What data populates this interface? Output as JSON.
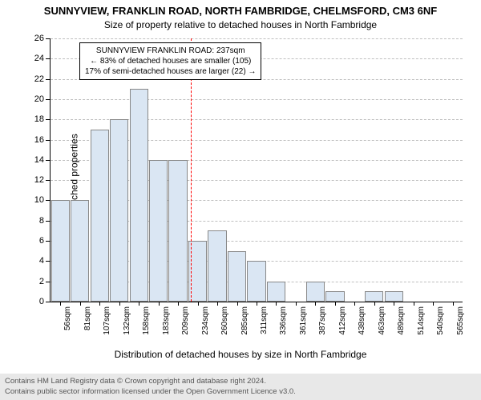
{
  "title": {
    "line1": "SUNNYVIEW, FRANKLIN ROAD, NORTH FAMBRIDGE, CHELMSFORD, CM3 6NF",
    "line2": "Size of property relative to detached houses in North Fambridge"
  },
  "ylabel": "Number of detached properties",
  "xlabel": "Distribution of detached houses by size in North Fambridge",
  "chart": {
    "type": "histogram",
    "ylim": [
      0,
      26
    ],
    "ytick_step": 2,
    "xtick_labels": [
      "56sqm",
      "81sqm",
      "107sqm",
      "132sqm",
      "158sqm",
      "183sqm",
      "209sqm",
      "234sqm",
      "260sqm",
      "285sqm",
      "311sqm",
      "336sqm",
      "361sqm",
      "387sqm",
      "412sqm",
      "438sqm",
      "463sqm",
      "489sqm",
      "514sqm",
      "540sqm",
      "565sqm"
    ],
    "bars": [
      10,
      10,
      17,
      18,
      21,
      14,
      14,
      6,
      7,
      5,
      4,
      2,
      0,
      2,
      1,
      0,
      1,
      1,
      0,
      0,
      0
    ],
    "bar_fill": "#dae6f3",
    "bar_stroke": "#888888",
    "grid_color": "rgba(0,0,0,0.25)",
    "background_color": "#ffffff",
    "marker_color": "#ff0000",
    "marker_index": 7,
    "bar_width_ratio": 0.95
  },
  "annotation": {
    "line1": "SUNNYVIEW FRANKLIN ROAD: 237sqm",
    "line2": "← 83% of detached houses are smaller (105)",
    "line3": "17% of semi-detached houses are larger (22) →"
  },
  "footer": {
    "line1": "Contains HM Land Registry data © Crown copyright and database right 2024.",
    "line2": "Contains public sector information licensed under the Open Government Licence v3.0."
  },
  "fonts": {
    "title_size": 13,
    "subtitle_size": 12,
    "axis_label_size": 12,
    "tick_size": 11
  }
}
